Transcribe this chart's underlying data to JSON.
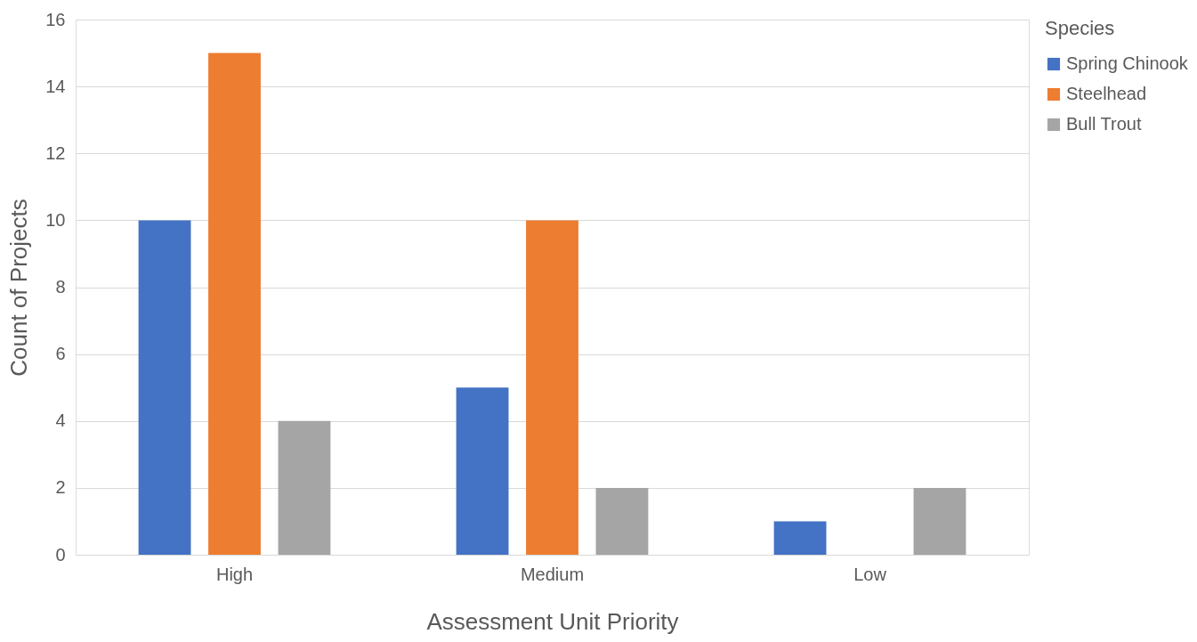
{
  "chart_data": {
    "type": "bar",
    "xlabel": "Assessment Unit Priority",
    "ylabel": "Count of Projects",
    "legend_title": "Species",
    "categories": [
      "High",
      "Medium",
      "Low"
    ],
    "series": [
      {
        "name": "Spring Chinook",
        "color": "#4472c4",
        "values": [
          10,
          5,
          1
        ]
      },
      {
        "name": "Steelhead",
        "color": "#ed7d31",
        "values": [
          15,
          10,
          null
        ]
      },
      {
        "name": "Bull Trout",
        "color": "#a5a5a5",
        "values": [
          4,
          2,
          2
        ]
      }
    ],
    "ylim": [
      0,
      16
    ],
    "yticks": [
      0,
      2,
      4,
      6,
      8,
      10,
      12,
      14,
      16
    ],
    "grid": "y",
    "legend": "right"
  }
}
